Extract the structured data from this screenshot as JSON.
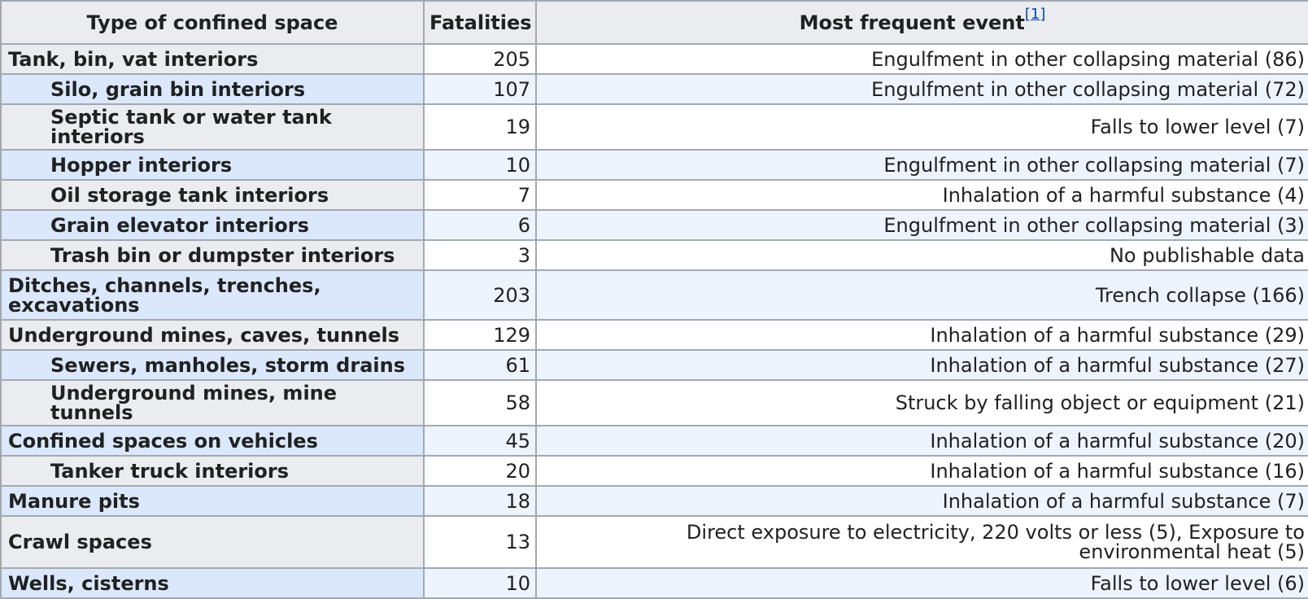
{
  "table": {
    "headers": {
      "type": "Type of confined space",
      "fatalities": "Fatalities",
      "event": "Most frequent event",
      "event_ref": "[1]"
    },
    "rows": [
      {
        "type": "Tank, bin, vat interiors",
        "fatalities": "205",
        "event": "Engulfment in other collapsing material (86)"
      },
      {
        "type": "Silo, grain bin interiors",
        "fatalities": "107",
        "event": "Engulfment in other collapsing material (72)"
      },
      {
        "type": "Septic tank or water tank interiors",
        "fatalities": "19",
        "event": "Falls to lower level (7)"
      },
      {
        "type": "Hopper interiors",
        "fatalities": "10",
        "event": "Engulfment in other collapsing material (7)"
      },
      {
        "type": "Oil storage tank interiors",
        "fatalities": "7",
        "event": "Inhalation of a harmful substance (4)"
      },
      {
        "type": "Grain elevator interiors",
        "fatalities": "6",
        "event": "Engulfment in other collapsing material (3)"
      },
      {
        "type": "Trash bin or dumpster interiors",
        "fatalities": "3",
        "event": "No publishable data"
      },
      {
        "type": "Ditches, channels, trenches, excavations",
        "fatalities": "203",
        "event": "Trench collapse (166)"
      },
      {
        "type": "Underground mines, caves, tunnels",
        "fatalities": "129",
        "event": "Inhalation of a harmful substance (29)"
      },
      {
        "type": "Sewers, manholes, storm drains",
        "fatalities": "61",
        "event": "Inhalation of a harmful substance (27)"
      },
      {
        "type": "Underground mines, mine tunnels",
        "fatalities": "58",
        "event": "Struck by falling object or equipment (21)"
      },
      {
        "type": "Confined spaces on vehicles",
        "fatalities": "45",
        "event": "Inhalation of a harmful substance (20)"
      },
      {
        "type": "Tanker truck interiors",
        "fatalities": "20",
        "event": "Inhalation of a harmful substance (16)"
      },
      {
        "type": "Manure pits",
        "fatalities": "18",
        "event": "Inhalation of a harmful substance (7)"
      },
      {
        "type": "Crawl spaces",
        "fatalities": "13",
        "event": "Direct exposure to electricity, 220 volts or less (5), Exposure to environmental heat (5)"
      },
      {
        "type": "Wells, cisterns",
        "fatalities": "10",
        "event": "Falls to lower level (6)"
      }
    ]
  }
}
